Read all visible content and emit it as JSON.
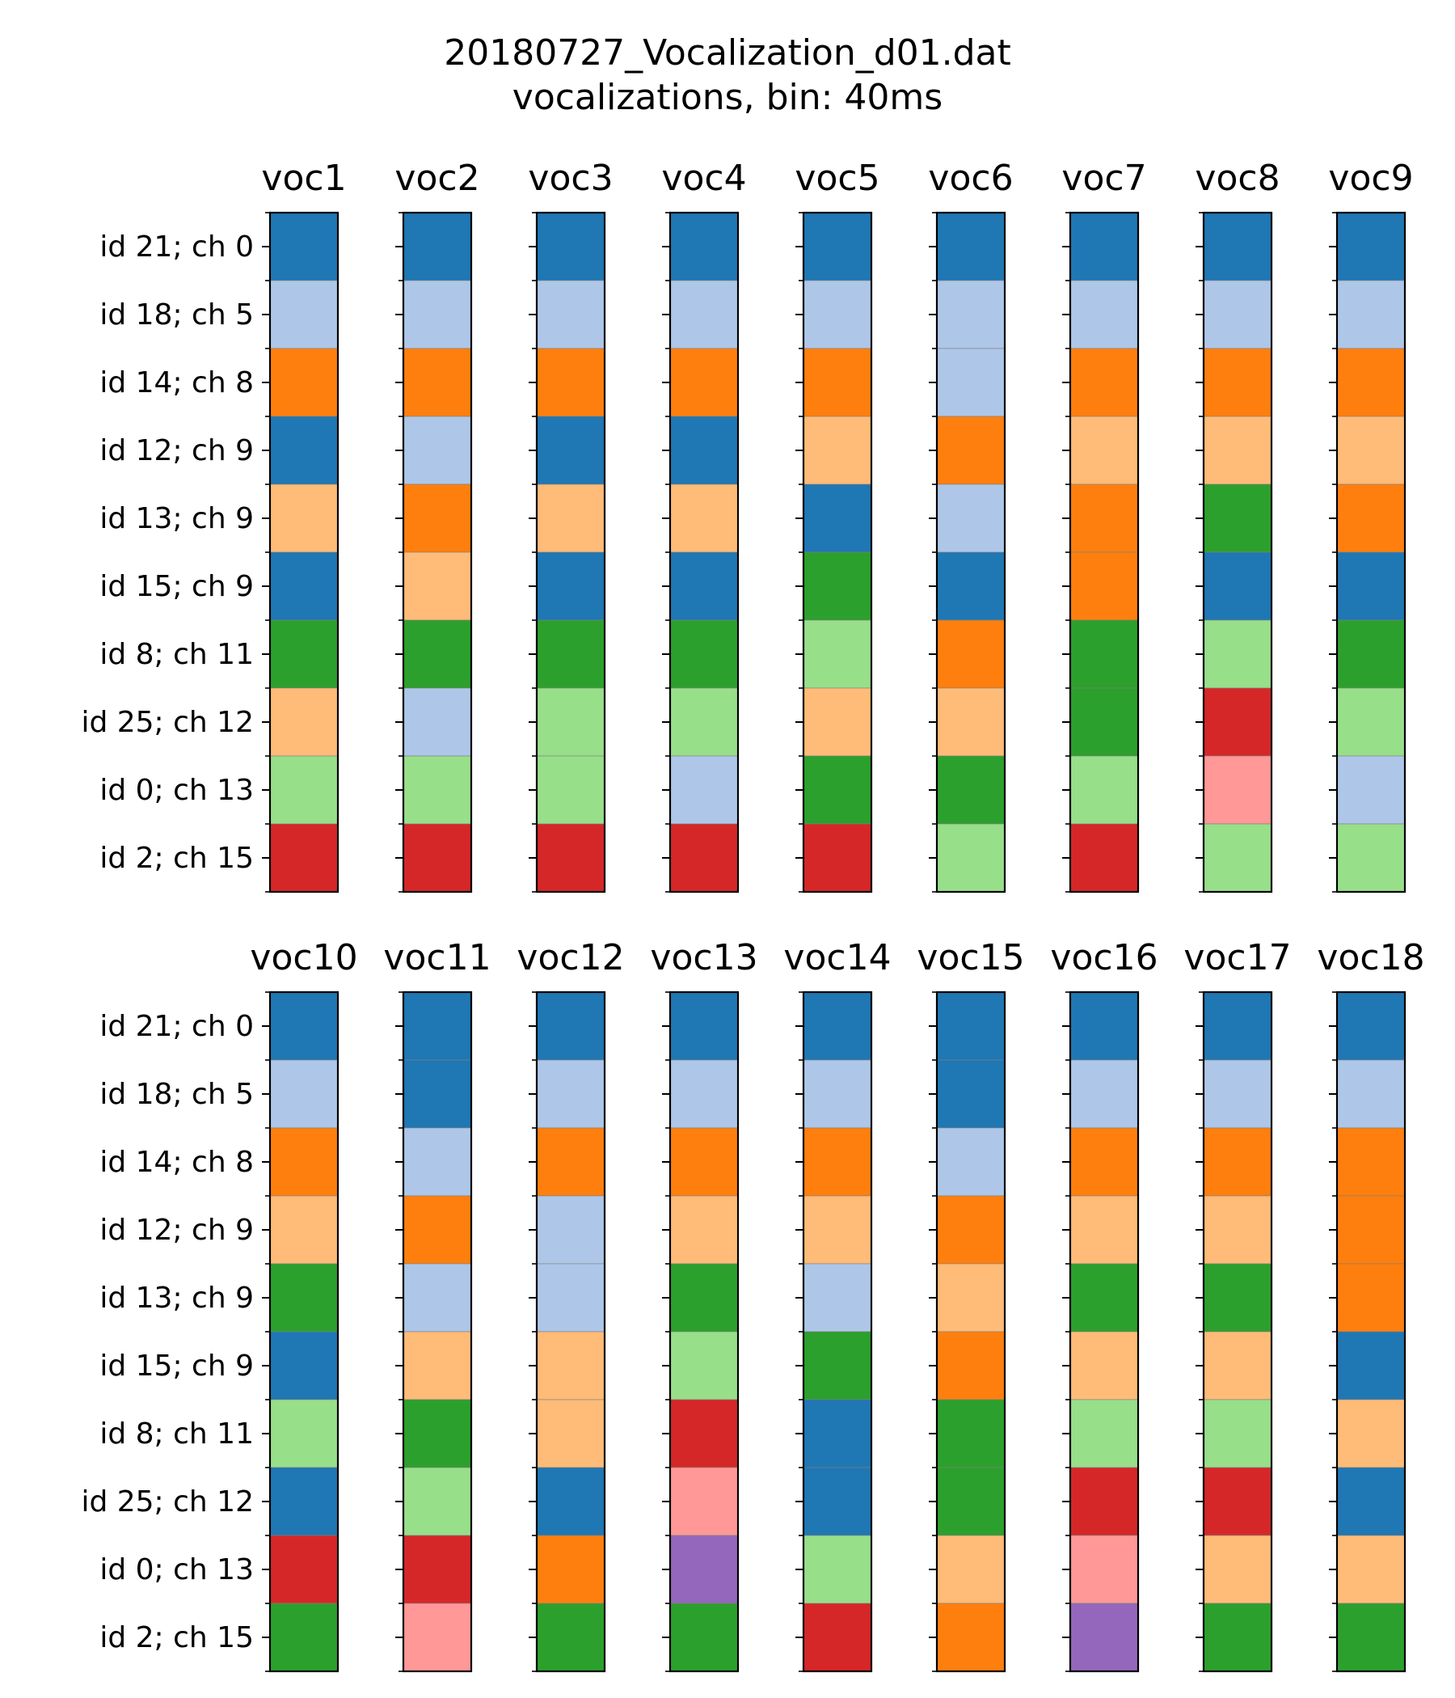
{
  "title_line1": "20180727_Vocalization_d01.dat",
  "title_line2": "vocalizations, bin: 40ms",
  "colors": {
    "blue": "#1f77b4",
    "lightblue": "#aec7e8",
    "orange": "#ff7f0e",
    "lightorange": "#ffbb78",
    "green": "#2ca02c",
    "lightgreen": "#98df8a",
    "red": "#d62728",
    "pink": "#ff9896",
    "purple": "#9467bd"
  },
  "chart_data": {
    "type": "heatmap",
    "row_labels": [
      "id 21; ch 0",
      "id 18; ch 5",
      "id 14; ch 8",
      "id 12; ch 9",
      "id 13; ch 9",
      "id 15; ch 9",
      "id 8; ch 11",
      "id 25; ch 12",
      "id 0; ch 13",
      "id 2; ch 15"
    ],
    "panels": [
      {
        "columns": [
          {
            "label": "voc1",
            "cells": [
              "blue",
              "lightblue",
              "orange",
              "blue",
              "lightorange",
              "blue",
              "green",
              "lightorange",
              "lightgreen",
              "red"
            ]
          },
          {
            "label": "voc2",
            "cells": [
              "blue",
              "lightblue",
              "orange",
              "lightblue",
              "orange",
              "lightorange",
              "green",
              "lightblue",
              "lightgreen",
              "red"
            ]
          },
          {
            "label": "voc3",
            "cells": [
              "blue",
              "lightblue",
              "orange",
              "blue",
              "lightorange",
              "blue",
              "green",
              "lightgreen",
              "lightgreen",
              "red"
            ]
          },
          {
            "label": "voc4",
            "cells": [
              "blue",
              "lightblue",
              "orange",
              "blue",
              "lightorange",
              "blue",
              "green",
              "lightgreen",
              "lightblue",
              "red"
            ]
          },
          {
            "label": "voc5",
            "cells": [
              "blue",
              "lightblue",
              "orange",
              "lightorange",
              "blue",
              "green",
              "lightgreen",
              "lightorange",
              "green",
              "red"
            ]
          },
          {
            "label": "voc6",
            "cells": [
              "blue",
              "lightblue",
              "lightblue",
              "orange",
              "lightblue",
              "blue",
              "orange",
              "lightorange",
              "green",
              "lightgreen"
            ]
          },
          {
            "label": "voc7",
            "cells": [
              "blue",
              "lightblue",
              "orange",
              "lightorange",
              "orange",
              "orange",
              "green",
              "green",
              "lightgreen",
              "red"
            ]
          },
          {
            "label": "voc8",
            "cells": [
              "blue",
              "lightblue",
              "orange",
              "lightorange",
              "green",
              "blue",
              "lightgreen",
              "red",
              "pink",
              "lightgreen"
            ]
          },
          {
            "label": "voc9",
            "cells": [
              "blue",
              "lightblue",
              "orange",
              "lightorange",
              "orange",
              "blue",
              "green",
              "lightgreen",
              "lightblue",
              "lightgreen"
            ]
          }
        ]
      },
      {
        "columns": [
          {
            "label": "voc10",
            "cells": [
              "blue",
              "lightblue",
              "orange",
              "lightorange",
              "green",
              "blue",
              "lightgreen",
              "blue",
              "red",
              "green"
            ]
          },
          {
            "label": "voc11",
            "cells": [
              "blue",
              "blue",
              "lightblue",
              "orange",
              "lightblue",
              "lightorange",
              "green",
              "lightgreen",
              "red",
              "pink"
            ]
          },
          {
            "label": "voc12",
            "cells": [
              "blue",
              "lightblue",
              "orange",
              "lightblue",
              "lightblue",
              "lightorange",
              "lightorange",
              "blue",
              "orange",
              "green"
            ]
          },
          {
            "label": "voc13",
            "cells": [
              "blue",
              "lightblue",
              "orange",
              "lightorange",
              "green",
              "lightgreen",
              "red",
              "pink",
              "purple",
              "green"
            ]
          },
          {
            "label": "voc14",
            "cells": [
              "blue",
              "lightblue",
              "orange",
              "lightorange",
              "lightblue",
              "green",
              "blue",
              "blue",
              "lightgreen",
              "red"
            ]
          },
          {
            "label": "voc15",
            "cells": [
              "blue",
              "blue",
              "lightblue",
              "orange",
              "lightorange",
              "orange",
              "green",
              "green",
              "lightorange",
              "orange"
            ]
          },
          {
            "label": "voc16",
            "cells": [
              "blue",
              "lightblue",
              "orange",
              "lightorange",
              "green",
              "lightorange",
              "lightgreen",
              "red",
              "pink",
              "purple"
            ]
          },
          {
            "label": "voc17",
            "cells": [
              "blue",
              "lightblue",
              "orange",
              "lightorange",
              "green",
              "lightorange",
              "lightgreen",
              "red",
              "lightorange",
              "green"
            ]
          },
          {
            "label": "voc18",
            "cells": [
              "blue",
              "lightblue",
              "orange",
              "orange",
              "orange",
              "blue",
              "lightorange",
              "blue",
              "lightorange",
              "green"
            ]
          }
        ]
      }
    ]
  }
}
